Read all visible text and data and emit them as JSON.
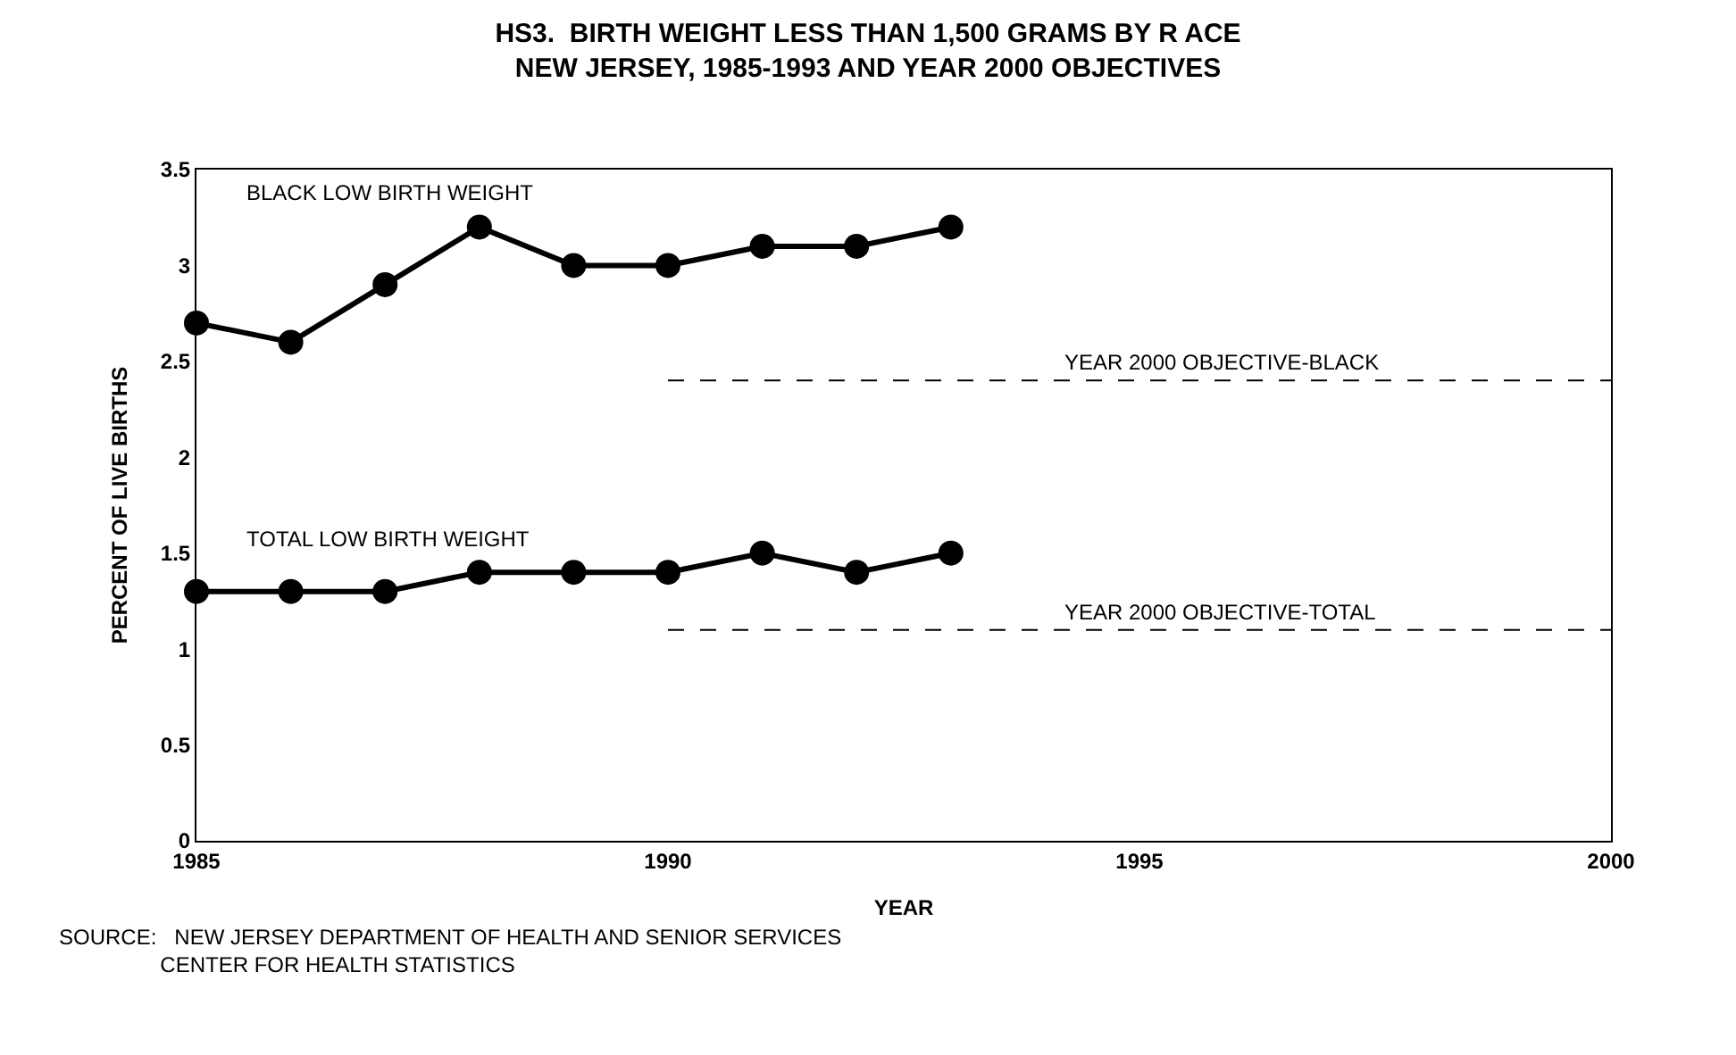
{
  "chart_data": {
    "type": "line",
    "title": "HS3.  BIRTH WEIGHT LESS THAN 1,500 GRAMS BY R ACE\nNEW JERSEY, 1985-1993 AND YEAR 2000 OBJECTIVES",
    "xlabel": "YEAR",
    "ylabel": "PERCENT OF LIVE BIRTHS",
    "x": [
      1985,
      1986,
      1987,
      1988,
      1989,
      1990,
      1991,
      1992,
      1993,
      1994,
      1995,
      1996,
      1997,
      1998,
      1999,
      2000
    ],
    "series": [
      {
        "name": "BLACK LOW BIRTH WEIGHT",
        "color": "#000000",
        "values": [
          2.7,
          2.6,
          2.9,
          3.2,
          3.0,
          3.0,
          3.1,
          3.1,
          3.2,
          null,
          null,
          null,
          null,
          null,
          null,
          null
        ]
      },
      {
        "name": "TOTAL LOW BIRTH WEIGHT",
        "color": "#000000",
        "values": [
          1.3,
          1.3,
          1.3,
          1.4,
          1.4,
          1.4,
          1.5,
          1.4,
          1.5,
          null,
          null,
          null,
          null,
          null,
          null,
          null
        ]
      },
      {
        "name": "YEAR 2000 OBJECTIVE-BLACK",
        "color": "#000000",
        "values": [
          null,
          null,
          null,
          null,
          null,
          2.4,
          2.4,
          2.4,
          2.4,
          2.4,
          2.4,
          2.4,
          2.4,
          2.4,
          2.4,
          2.4
        ],
        "line_style": "dashed",
        "marker": "none"
      },
      {
        "name": "YEAR 2000 OBJECTIVE-TOTAL",
        "color": "#000000",
        "values": [
          null,
          null,
          null,
          null,
          null,
          1.1,
          1.1,
          1.1,
          1.1,
          1.1,
          1.1,
          1.1,
          1.1,
          1.1,
          1.1,
          1.1
        ],
        "line_style": "dashed",
        "marker": "none"
      }
    ],
    "marker": "circle",
    "line_style": "solid",
    "xlim": [
      1985,
      2000
    ],
    "xticks": [
      1985,
      1990,
      1995,
      2000
    ],
    "ylim": [
      0,
      3.5
    ],
    "yticks": [
      0,
      0.5,
      1,
      1.5,
      2,
      2.5,
      3,
      3.5
    ],
    "grid": false,
    "legend": false,
    "annotations": [
      "SOURCE:   NEW JERSEY DEPARTMENT OF HEALTH AND SENIOR SERVICES\n                 CENTER FOR HEALTH STATISTICS"
    ]
  }
}
